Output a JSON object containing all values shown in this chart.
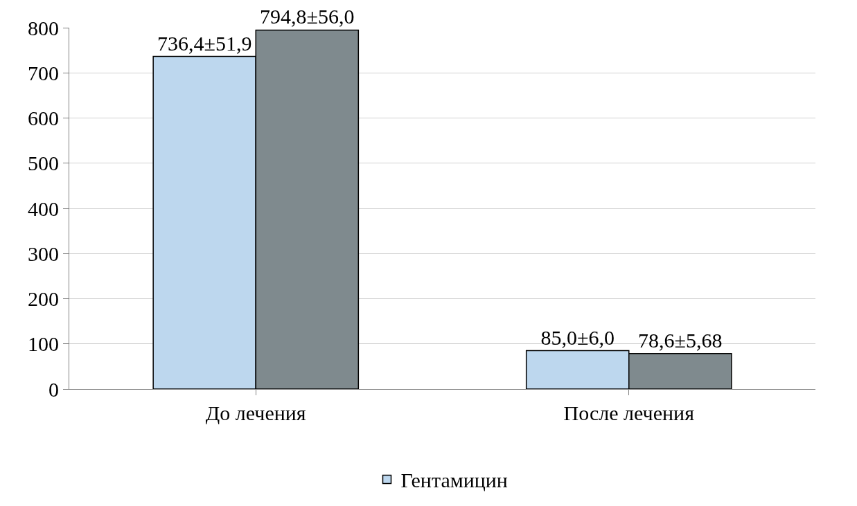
{
  "chart_data": {
    "type": "bar",
    "categories": [
      "До лечения",
      "После лечения"
    ],
    "series": [
      {
        "name": "Гентамицин",
        "color": "#bdd7ee",
        "values": [
          736.4,
          85.0
        ],
        "value_labels": [
          "736,4±51,9",
          "85,0±6,0"
        ]
      },
      {
        "color": "#7f8a8e",
        "values": [
          794.8,
          78.6
        ],
        "value_labels": [
          "794,8±56,0",
          "78,6±5,68"
        ]
      }
    ],
    "ylim": [
      0,
      800
    ],
    "yticks": [
      0,
      100,
      200,
      300,
      400,
      500,
      600,
      700,
      800
    ],
    "grid": "y",
    "legend": "bottom"
  }
}
